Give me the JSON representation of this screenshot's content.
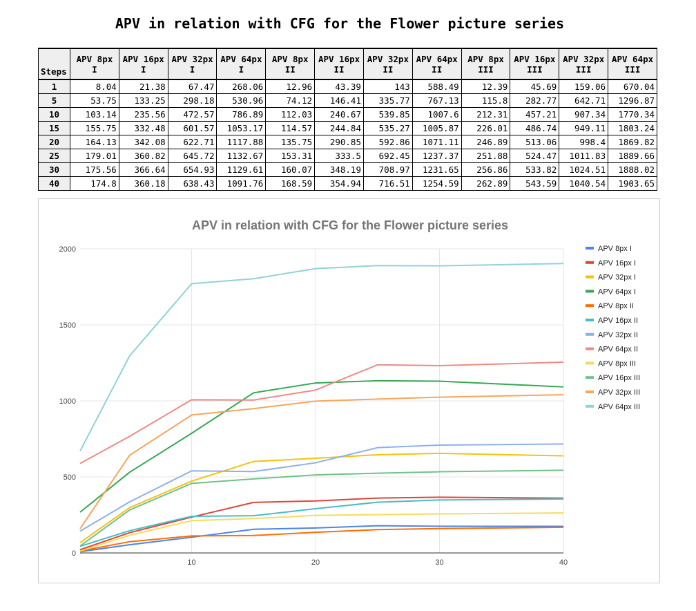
{
  "page_title": "APV in relation with CFG for the Flower picture series",
  "table": {
    "steps_header": "Steps",
    "columns": [
      {
        "line1": "APV 8px",
        "line2": "I"
      },
      {
        "line1": "APV 16px",
        "line2": "I"
      },
      {
        "line1": "APV 32px",
        "line2": "I"
      },
      {
        "line1": "APV 64px",
        "line2": "I"
      },
      {
        "line1": "APV 8px",
        "line2": "II"
      },
      {
        "line1": "APV 16px",
        "line2": "II"
      },
      {
        "line1": "APV 32px",
        "line2": "II"
      },
      {
        "line1": "APV 64px",
        "line2": "II"
      },
      {
        "line1": "APV 8px",
        "line2": "III"
      },
      {
        "line1": "APV 16px",
        "line2": "III"
      },
      {
        "line1": "APV 32px",
        "line2": "III"
      },
      {
        "line1": "APV 64px",
        "line2": "III"
      }
    ],
    "rows": [
      {
        "step": "1",
        "cells": [
          "8.04",
          "21.38",
          "67.47",
          "268.06",
          "12.96",
          "43.39",
          "143",
          "588.49",
          "12.39",
          "45.69",
          "159.06",
          "670.04"
        ]
      },
      {
        "step": "5",
        "cells": [
          "53.75",
          "133.25",
          "298.18",
          "530.96",
          "74.12",
          "146.41",
          "335.77",
          "767.13",
          "115.8",
          "282.77",
          "642.71",
          "1296.87"
        ]
      },
      {
        "step": "10",
        "cells": [
          "103.14",
          "235.56",
          "472.57",
          "786.89",
          "112.03",
          "240.67",
          "539.85",
          "1007.6",
          "212.31",
          "457.21",
          "907.34",
          "1770.34"
        ]
      },
      {
        "step": "15",
        "cells": [
          "155.75",
          "332.48",
          "601.57",
          "1053.17",
          "114.57",
          "244.84",
          "535.27",
          "1005.87",
          "226.01",
          "486.74",
          "949.11",
          "1803.24"
        ]
      },
      {
        "step": "20",
        "cells": [
          "164.13",
          "342.08",
          "622.71",
          "1117.88",
          "135.75",
          "290.85",
          "592.86",
          "1071.11",
          "246.89",
          "513.06",
          "998.4",
          "1869.82"
        ]
      },
      {
        "step": "25",
        "cells": [
          "179.01",
          "360.82",
          "645.72",
          "1132.67",
          "153.31",
          "333.5",
          "692.45",
          "1237.37",
          "251.88",
          "524.47",
          "1011.83",
          "1889.66"
        ]
      },
      {
        "step": "30",
        "cells": [
          "175.56",
          "366.64",
          "654.93",
          "1129.61",
          "160.07",
          "348.19",
          "708.97",
          "1231.65",
          "256.86",
          "533.82",
          "1024.51",
          "1888.02"
        ]
      },
      {
        "step": "40",
        "cells": [
          "174.8",
          "360.18",
          "638.43",
          "1091.76",
          "168.59",
          "354.94",
          "716.51",
          "1254.59",
          "262.89",
          "543.59",
          "1040.54",
          "1903.65"
        ]
      }
    ]
  },
  "chart_data": {
    "type": "line",
    "title": "APV in relation with CFG for the Flower picture series",
    "xlabel": "",
    "ylabel": "",
    "x": [
      1,
      5,
      10,
      15,
      20,
      25,
      30,
      40
    ],
    "xlim": [
      1,
      40
    ],
    "ylim": [
      0,
      2000
    ],
    "x_ticks": [
      10,
      20,
      30,
      40
    ],
    "y_ticks": [
      0,
      500,
      1000,
      1500,
      2000
    ],
    "grid": true,
    "legend_position": "right",
    "series": [
      {
        "name": "APV 8px I",
        "color": "#4a86e8",
        "values": [
          8.04,
          53.75,
          103.14,
          155.75,
          164.13,
          179.01,
          175.56,
          174.8
        ]
      },
      {
        "name": "APV 16px I",
        "color": "#e0453a",
        "values": [
          21.38,
          133.25,
          235.56,
          332.48,
          342.08,
          360.82,
          366.64,
          360.18
        ]
      },
      {
        "name": "APV 32px I",
        "color": "#f4c20d",
        "values": [
          67.47,
          298.18,
          472.57,
          601.57,
          622.71,
          645.72,
          654.93,
          638.43
        ]
      },
      {
        "name": "APV 64px I",
        "color": "#34a853",
        "values": [
          268.06,
          530.96,
          786.89,
          1053.17,
          1117.88,
          1132.67,
          1129.61,
          1091.76
        ]
      },
      {
        "name": "APV 8px II",
        "color": "#ff6d01",
        "values": [
          12.96,
          74.12,
          112.03,
          114.57,
          135.75,
          153.31,
          160.07,
          168.59
        ]
      },
      {
        "name": "APV 16px II",
        "color": "#46bdc6",
        "values": [
          43.39,
          146.41,
          240.67,
          244.84,
          290.85,
          333.5,
          348.19,
          354.94
        ]
      },
      {
        "name": "APV 32px II",
        "color": "#8ab0f0",
        "values": [
          143,
          335.77,
          539.85,
          535.27,
          592.86,
          692.45,
          708.97,
          716.51
        ]
      },
      {
        "name": "APV 64px II",
        "color": "#ee8a85",
        "values": [
          588.49,
          767.13,
          1007.6,
          1005.87,
          1071.11,
          1237.37,
          1231.65,
          1254.59
        ]
      },
      {
        "name": "APV 8px III",
        "color": "#f7db5c",
        "values": [
          12.39,
          115.8,
          212.31,
          226.01,
          246.89,
          251.88,
          256.86,
          262.89
        ]
      },
      {
        "name": "APV 16px III",
        "color": "#6fc28a",
        "values": [
          45.69,
          282.77,
          457.21,
          486.74,
          513.06,
          524.47,
          533.82,
          543.59
        ]
      },
      {
        "name": "APV 32px III",
        "color": "#f7a55a",
        "values": [
          159.06,
          642.71,
          907.34,
          949.11,
          998.4,
          1011.83,
          1024.51,
          1040.54
        ]
      },
      {
        "name": "APV 64px III",
        "color": "#8fd3d8",
        "values": [
          670.04,
          1296.87,
          1770.34,
          1803.24,
          1869.82,
          1889.66,
          1888.02,
          1903.65
        ]
      }
    ]
  }
}
